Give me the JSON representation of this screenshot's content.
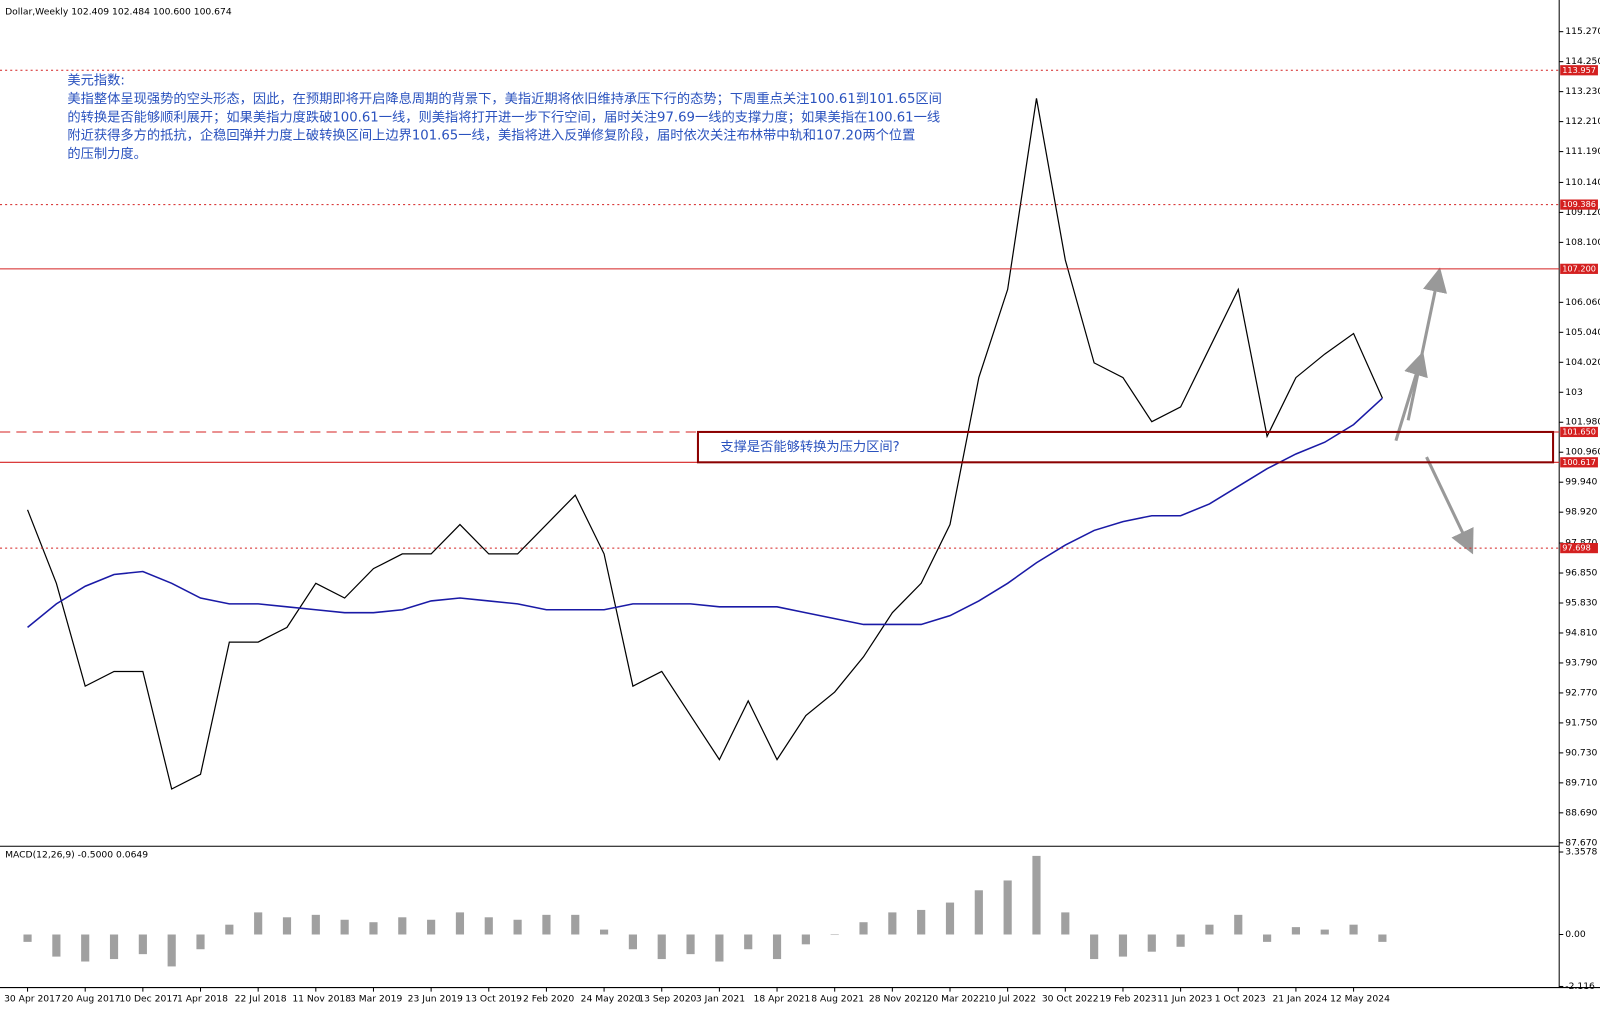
{
  "chart_data": [
    {
      "type": "line",
      "title": "Dollar,Weekly  102.409 102.484 100.600 100.674",
      "annotation": [
        "美元指数:",
        "美指整体呈现强势的空头形态，因此，在预期即将开启降息周期的背景下，美指近期将依旧维持承压下行的态势；下周重点关注100.61到101.65区间",
        "的转换是否能够顺利展开；如果美指力度跌破100.61一线，则美指将打开进一步下行空间，届时关注97.69一线的支撑力度；如果美指在100.61一线",
        "附近获得多方的抵抗，企稳回弹并力度上破转换区间上边界101.65一线，美指将进入反弹修复阶段，届时依次关注布林带中轨和107.20两个位置",
        "的压制力度。"
      ],
      "box_label": "支撑是否能够转换为压力区间?",
      "categories": [
        "30 Apr 2017",
        null,
        "20 Aug 2017",
        null,
        "10 Dec 2017",
        null,
        "1 Apr 2018",
        null,
        "22 Jul 2018",
        null,
        "11 Nov 2018",
        null,
        "3 Mar 2019",
        null,
        "23 Jun 2019",
        null,
        "13 Oct 2019",
        null,
        "2 Feb 2020",
        null,
        "24 May 2020",
        null,
        "13 Sep 2020",
        null,
        "3 Jan 2021",
        null,
        "18 Apr 2021",
        null,
        "8 Aug 2021",
        null,
        "28 Nov 2021",
        null,
        "20 Mar 2022",
        null,
        "10 Jul 2022",
        null,
        "30 Oct 2022",
        null,
        "19 Feb 2023",
        null,
        "11 Jun 2023",
        null,
        "1 Oct 2023",
        null,
        "21 Jan 2024",
        null,
        "12 May 2024",
        null
      ],
      "series": [
        {
          "name": "Dollar",
          "color": "#000000",
          "values": [
            99.0,
            96.5,
            93.0,
            93.5,
            93.5,
            89.5,
            90.0,
            94.5,
            94.5,
            95.0,
            96.5,
            96.0,
            97.0,
            97.5,
            97.5,
            98.5,
            97.5,
            97.5,
            98.5,
            99.5,
            97.5,
            93.0,
            93.5,
            92.0,
            90.5,
            92.5,
            90.5,
            92.0,
            92.8,
            94.0,
            95.5,
            96.5,
            98.5,
            103.5,
            106.5,
            113.0,
            107.5,
            104.0,
            103.5,
            102.0,
            102.5,
            104.5,
            106.5,
            101.5,
            103.5,
            104.3,
            105.0,
            102.8
          ]
        },
        {
          "name": "MA",
          "color": "#1a1aa6",
          "values": [
            95.0,
            95.8,
            96.4,
            96.8,
            96.9,
            96.5,
            96.0,
            95.8,
            95.8,
            95.7,
            95.6,
            95.5,
            95.5,
            95.6,
            95.9,
            96.0,
            95.9,
            95.8,
            95.6,
            95.6,
            95.6,
            95.8,
            95.8,
            95.8,
            95.7,
            95.7,
            95.7,
            95.5,
            95.3,
            95.1,
            95.1,
            95.1,
            95.4,
            95.9,
            96.5,
            97.2,
            97.8,
            98.3,
            98.6,
            98.8,
            98.8,
            99.2,
            99.8,
            100.4,
            100.9,
            101.3,
            101.9,
            102.8
          ]
        }
      ],
      "ylim": [
        87.57,
        116.07
      ],
      "yticks": [
        {
          "value": 115.27,
          "label": "115.270"
        },
        {
          "value": 114.25,
          "label": "114.250"
        },
        {
          "value": 113.23,
          "label": "113.230"
        },
        {
          "value": 112.21,
          "label": "112.210"
        },
        {
          "value": 111.19,
          "label": "111.190"
        },
        {
          "value": 110.14,
          "label": "110.140"
        },
        {
          "value": 109.12,
          "label": "109.120"
        },
        {
          "value": 108.1,
          "label": "108.100"
        },
        {
          "value": 106.06,
          "label": "106.060"
        },
        {
          "value": 105.04,
          "label": "105.040"
        },
        {
          "value": 104.02,
          "label": "104.020"
        },
        103,
        {
          "value": 101.98,
          "label": "101.980"
        },
        {
          "value": 100.96,
          "label": "100.960"
        },
        {
          "value": 99.94,
          "label": "99.940"
        },
        {
          "value": 98.92,
          "label": "98.920"
        },
        {
          "value": 97.87,
          "label": "97.870"
        },
        {
          "value": 96.85,
          "label": "96.850"
        },
        {
          "value": 95.83,
          "label": "95.830"
        },
        {
          "value": 94.81,
          "label": "94.810"
        },
        {
          "value": 93.79,
          "label": "93.790"
        },
        {
          "value": 92.77,
          "label": "92.770"
        },
        {
          "value": 91.75,
          "label": "91.750"
        },
        {
          "value": 90.73,
          "label": "90.730"
        },
        {
          "value": 89.71,
          "label": "89.710"
        },
        {
          "value": 88.69,
          "label": "88.690"
        },
        {
          "value": 87.67,
          "label": "87.670"
        }
      ],
      "levels": [
        113.957,
        109.386,
        {
          "value": 107.2,
          "label": "107.200"
        },
        {
          "value": 101.65,
          "label": "101.650"
        },
        100.617,
        97.698
      ],
      "level_styles": [
        "dotted",
        "dotted",
        "solid",
        "dashed",
        "solid",
        "dotted"
      ],
      "level_color": "#d42020"
    },
    {
      "type": "bar",
      "title": "MACD(12,26,9) -0.5000 0.0649",
      "color": "#a0a0a0",
      "values": [
        -0.3,
        -0.9,
        -1.1,
        -1.0,
        -0.8,
        -1.3,
        -0.6,
        0.4,
        0.9,
        0.7,
        0.8,
        0.6,
        0.5,
        0.7,
        0.6,
        0.9,
        0.7,
        0.6,
        0.8,
        0.8,
        0.2,
        -0.6,
        -1.0,
        -0.8,
        -1.1,
        -0.6,
        -1.0,
        -0.4,
        0.0,
        0.5,
        0.9,
        1.0,
        1.3,
        1.8,
        2.2,
        3.2,
        0.9,
        -1.0,
        -0.9,
        -0.7,
        -0.5,
        0.4,
        0.8,
        -0.3,
        0.3,
        0.2,
        0.4,
        -0.3
      ],
      "ylim": [
        -2.16,
        3.53
      ],
      "yticks": [
        {
          "value": 3.3578,
          "label": "3.3578"
        },
        {
          "value": 0,
          "label": "0.00"
        },
        -2.116
      ]
    }
  ]
}
